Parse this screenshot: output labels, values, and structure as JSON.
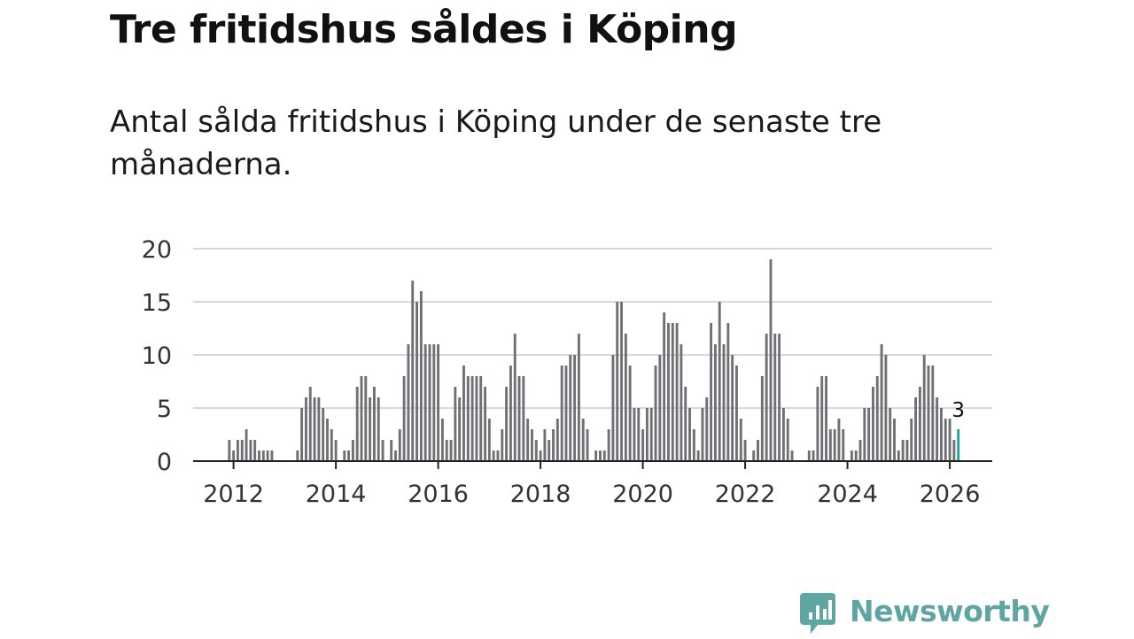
{
  "title": "Tre fritidshus såldes i Köping",
  "subtitle": "Antal sålda fritidshus i Köping under de senaste tre månaderna.",
  "brand": {
    "name": "Newsworthy",
    "color": "#5fa5a2",
    "icon": "newsworthy-chart-bubble-icon"
  },
  "colors": {
    "bar": "#707074",
    "highlight": "#1fa39e",
    "grid": "#d8d8d8",
    "axis": "#222222"
  },
  "chart_data": {
    "type": "bar",
    "title": "Tre fritidshus såldes i Köping",
    "subtitle": "Antal sålda fritidshus i Köping under de senaste tre månaderna.",
    "xlabel": "",
    "ylabel": "",
    "ylim": [
      0,
      20
    ],
    "yticks": [
      0,
      5,
      10,
      15,
      20
    ],
    "yticklabels": [
      "0",
      "5",
      "10",
      "15",
      "20"
    ],
    "xlim": [
      2011.21,
      2026.83
    ],
    "xticks": [
      2012,
      2014,
      2016,
      2018,
      2020,
      2022,
      2024,
      2026
    ],
    "xticklabels": [
      "2012",
      "2014",
      "2016",
      "2018",
      "2020",
      "2022",
      "2024",
      "2026"
    ],
    "grid": true,
    "start": "2011-12",
    "frequency": "monthly",
    "values": [
      2,
      1,
      2,
      2,
      3,
      2,
      2,
      1,
      1,
      1,
      1,
      0,
      0,
      0,
      0,
      0,
      1,
      5,
      6,
      7,
      6,
      6,
      5,
      4,
      3,
      2,
      0,
      1,
      1,
      2,
      7,
      8,
      8,
      6,
      7,
      6,
      2,
      0,
      2,
      1,
      3,
      8,
      11,
      17,
      15,
      16,
      11,
      11,
      11,
      11,
      4,
      2,
      2,
      7,
      6,
      9,
      8,
      8,
      8,
      8,
      7,
      4,
      1,
      1,
      3,
      7,
      9,
      12,
      8,
      8,
      4,
      3,
      2,
      1,
      3,
      2,
      3,
      4,
      9,
      9,
      10,
      10,
      12,
      4,
      3,
      0,
      1,
      1,
      1,
      3,
      10,
      15,
      15,
      12,
      9,
      5,
      5,
      3,
      5,
      5,
      9,
      10,
      14,
      13,
      13,
      13,
      11,
      7,
      5,
      3,
      1,
      5,
      6,
      13,
      11,
      15,
      11,
      13,
      10,
      9,
      4,
      2,
      0,
      1,
      2,
      8,
      12,
      19,
      12,
      12,
      5,
      4,
      1,
      0,
      0,
      0,
      1,
      1,
      7,
      8,
      8,
      3,
      3,
      4,
      3,
      0,
      1,
      1,
      2,
      5,
      5,
      7,
      8,
      11,
      10,
      5,
      4,
      1,
      2,
      2,
      4,
      6,
      7,
      10,
      9,
      9,
      6,
      5,
      4,
      4,
      2,
      3
    ],
    "highlight_last": 1,
    "annotations": [
      {
        "label": "3",
        "target": "last-bar"
      }
    ]
  }
}
